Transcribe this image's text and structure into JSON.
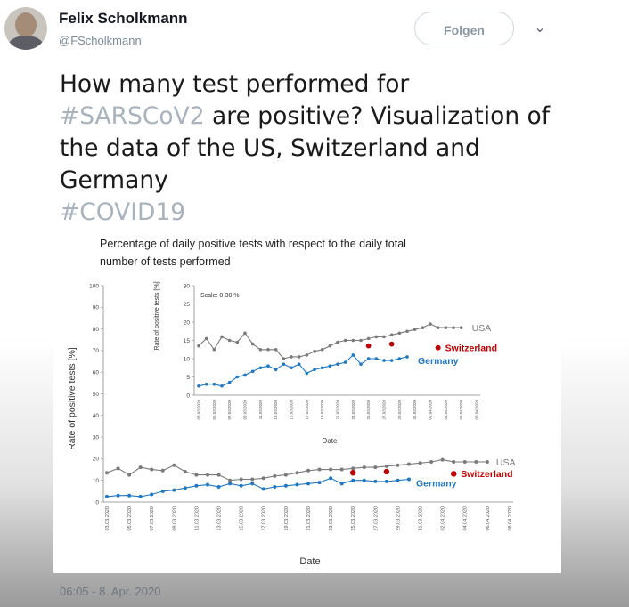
{
  "user": {
    "name": "Felix Scholkmann",
    "handle": "@FScholkmann"
  },
  "follow_label": "Folgen",
  "tweet": {
    "line1": "How many test performed for",
    "hashtag1": "#SARSCoV2",
    "line2_rest": " are positive? Visualization of",
    "line3": "the data of the US, Switzerland and",
    "line4": "Germany",
    "hashtag2": "#COVID19"
  },
  "timestamp": "06:05 - 8. Apr. 2020",
  "icons": {
    "caret": "chevron-down-icon",
    "avatar": "avatar"
  },
  "chart_data": {
    "type": "line",
    "title": "Percentage of daily positive tests with respect to the daily total number of tests performed",
    "title_line1": "Percentage of daily positive tests with respect to the daily total",
    "title_line2": "number of tests performed",
    "xlabel": "Date",
    "ylabel": "Rate of positive tests [%]",
    "inset_ylabel": "Rate of positive tests [%]",
    "inset_note": "Scale: 0-30 %",
    "ylim": [
      0,
      100
    ],
    "inset_ylim": [
      0,
      30
    ],
    "y_ticks": [
      0,
      10,
      20,
      30,
      40,
      50,
      60,
      70,
      80,
      90,
      100
    ],
    "inset_y_ticks": [
      0,
      5,
      10,
      15,
      20,
      25,
      30
    ],
    "x": [
      "03.03.2020",
      "04.03.2020",
      "05.03.2020",
      "06.03.2020",
      "07.03.2020",
      "08.03.2020",
      "09.03.2020",
      "10.03.2020",
      "11.03.2020",
      "12.03.2020",
      "13.03.2020",
      "14.03.2020",
      "15.03.2020",
      "16.03.2020",
      "17.03.2020",
      "18.03.2020",
      "19.03.2020",
      "20.03.2020",
      "21.03.2020",
      "22.03.2020",
      "23.03.2020",
      "24.03.2020",
      "25.03.2020",
      "26.03.2020",
      "27.03.2020",
      "28.03.2020",
      "29.03.2020",
      "30.03.2020",
      "31.03.2020",
      "01.04.2020",
      "02.04.2020",
      "03.04.2020",
      "04.04.2020",
      "05.04.2020",
      "06.04.2020",
      "07.04.2020",
      "08.04.2020"
    ],
    "x_tick_labels": [
      "03.03.2020",
      "05.03.2020",
      "07.03.2020",
      "09.03.2020",
      "11.03.2020",
      "13.03.2020",
      "15.03.2020",
      "17.03.2020",
      "19.03.2020",
      "21.03.2020",
      "23.03.2020",
      "25.03.2020",
      "27.03.2020",
      "29.03.2020",
      "31.03.2020",
      "02.04.2020",
      "04.04.2020",
      "06.04.2020",
      "08.04.2020"
    ],
    "series": [
      {
        "name": "USA",
        "color": "#7a7a7a",
        "values": [
          13.5,
          15.5,
          12.5,
          16,
          15,
          14.5,
          17,
          14,
          12.5,
          12.5,
          12.5,
          10,
          10.5,
          10.5,
          11,
          12,
          12.5,
          13.5,
          14.5,
          15,
          15,
          15,
          15.5,
          16,
          16,
          16.5,
          17,
          17.5,
          18,
          18.5,
          19.5,
          18.5,
          18.5,
          18.5,
          18.5,
          null,
          null
        ]
      },
      {
        "name": "Switzerland",
        "color": "#c00000",
        "values": [
          null,
          null,
          null,
          null,
          null,
          null,
          null,
          null,
          null,
          null,
          null,
          null,
          null,
          null,
          null,
          null,
          null,
          null,
          null,
          null,
          null,
          null,
          13.5,
          null,
          null,
          14,
          null,
          null,
          null,
          null,
          null,
          13,
          null,
          null,
          null,
          null,
          null
        ]
      },
      {
        "name": "Germany",
        "color": "#1f78c1",
        "values": [
          2.5,
          3,
          3,
          2.5,
          3.5,
          5,
          5.5,
          6.5,
          7.5,
          8,
          7,
          8.5,
          7.5,
          8.5,
          6,
          7,
          7.5,
          8,
          8.5,
          9,
          11,
          8.5,
          10,
          10,
          9.5,
          9.5,
          10,
          10.5,
          null,
          null,
          null,
          null,
          null,
          null,
          null,
          null,
          null
        ]
      }
    ],
    "legend_placement": "inline-right",
    "grid": false
  }
}
